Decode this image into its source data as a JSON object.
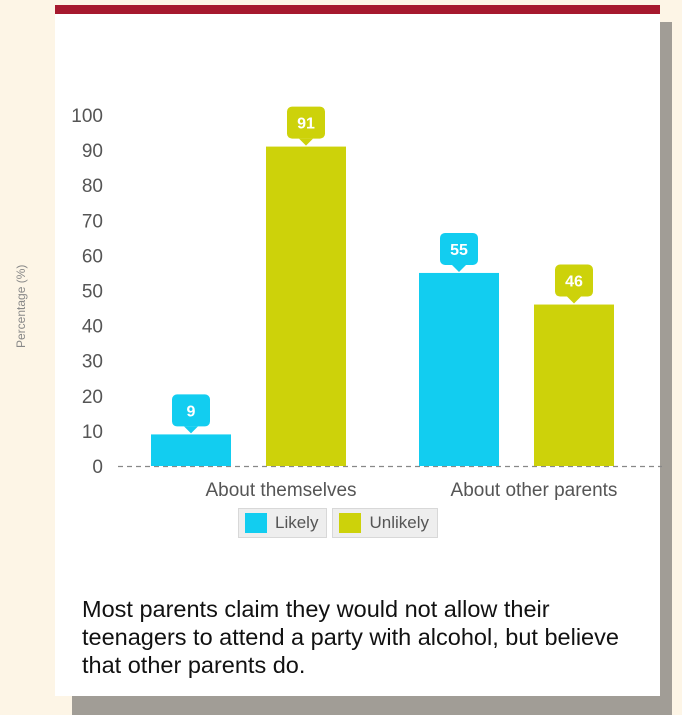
{
  "chart_data": {
    "type": "bar",
    "ylabel": "Percentage (%)",
    "ylim": [
      0,
      100
    ],
    "yticks": [
      "0",
      "10",
      "20",
      "30",
      "40",
      "50",
      "60",
      "70",
      "80",
      "90",
      "100"
    ],
    "categories": [
      "About themselves",
      "About other parents"
    ],
    "series": [
      {
        "name": "Likely",
        "color": "#12cdf0",
        "values": [
          9,
          55
        ]
      },
      {
        "name": "Unlikely",
        "color": "#cdd20a",
        "values": [
          91,
          46
        ]
      }
    ],
    "data_labels": true,
    "legend_position": "bottom",
    "grid": false
  },
  "caption": "Most parents claim they would not allow their teenagers to attend a party with alcohol, but believe that other parents do.",
  "colors": {
    "accent_bar": "#a6192e",
    "likely": "#12cdf0",
    "unlikely": "#cdd20a"
  }
}
